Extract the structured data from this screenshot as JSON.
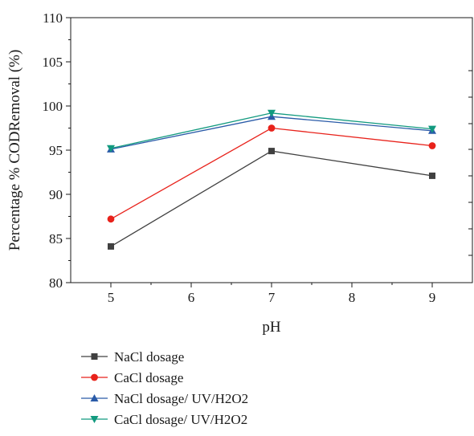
{
  "chart_data": {
    "type": "line",
    "xlabel": "pH",
    "ylabel": "Percentage % CODRemoval (%)",
    "xlim": [
      4.5,
      9.5
    ],
    "ylim": [
      80,
      110
    ],
    "x_ticks": [
      5,
      6,
      7,
      8,
      9
    ],
    "y_ticks": [
      80,
      85,
      90,
      95,
      100,
      105,
      110
    ],
    "x_tick_labels": [
      "5",
      "6",
      "7",
      "8",
      "9"
    ],
    "y_tick_labels": [
      "80",
      "85",
      "90",
      "95",
      "100",
      "105",
      "110"
    ],
    "x": [
      5,
      7,
      9
    ],
    "grid": false,
    "legend_position": "below",
    "series": [
      {
        "name": "NaCl dosage",
        "values": [
          84.1,
          94.9,
          92.1
        ],
        "color": "#404040",
        "marker": "square"
      },
      {
        "name": "CaCl dosage",
        "values": [
          87.2,
          97.5,
          95.5
        ],
        "color": "#e8221b",
        "marker": "circle"
      },
      {
        "name": "NaCl dosage/ UV/H2O2",
        "values": [
          95.1,
          98.8,
          97.2
        ],
        "color": "#2a5ba8",
        "marker": "triangle-up"
      },
      {
        "name": "CaCl dosage/ UV/H2O2",
        "values": [
          95.2,
          99.2,
          97.4
        ],
        "color": "#129a7f",
        "marker": "triangle-down"
      }
    ]
  }
}
